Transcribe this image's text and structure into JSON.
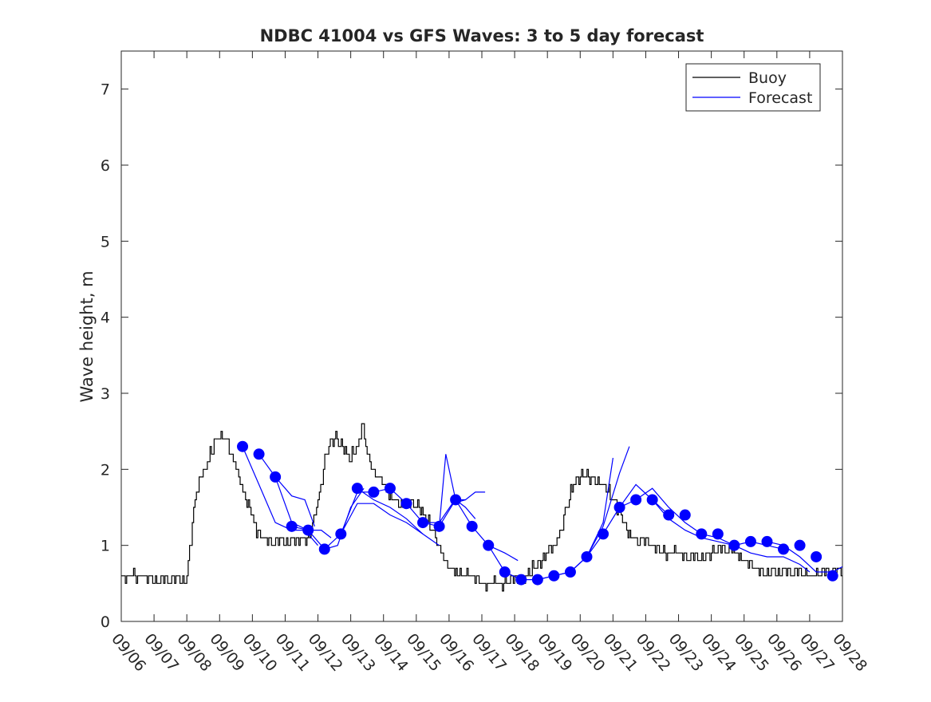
{
  "chart_data": {
    "type": "line",
    "title": "NDBC 41004 vs GFS Waves: 3 to 5 day forecast",
    "xlabel": "",
    "ylabel": "Wave height, m",
    "xlim": [
      0,
      22
    ],
    "ylim": [
      0,
      7.5
    ],
    "x_unit": "days since 09/06 00:00",
    "x_ticks": [
      0,
      1,
      2,
      3,
      4,
      5,
      6,
      7,
      8,
      9,
      10,
      11,
      12,
      13,
      14,
      15,
      16,
      17,
      18,
      19,
      20,
      21,
      22
    ],
    "x_tick_labels": [
      "09/06",
      "09/07",
      "09/08",
      "09/09",
      "09/10",
      "09/11",
      "09/12",
      "09/13",
      "09/14",
      "09/15",
      "09/16",
      "09/17",
      "09/18",
      "09/19",
      "09/20",
      "09/21",
      "09/22",
      "09/23",
      "09/24",
      "09/25",
      "09/26",
      "09/27",
      "09/28"
    ],
    "y_ticks": [
      0,
      1,
      2,
      3,
      4,
      5,
      6,
      7
    ],
    "y_tick_labels": [
      "0",
      "1",
      "2",
      "3",
      "4",
      "5",
      "6",
      "7"
    ],
    "legend": {
      "location": "top-right",
      "entries": [
        {
          "label": "Buoy",
          "color": "#000000"
        },
        {
          "label": "Forecast",
          "color": "#0000ff"
        }
      ]
    },
    "buoy_anchors": {
      "name": "Buoy",
      "color": "#000000",
      "x": [
        0.0,
        0.4,
        1.0,
        1.8,
        2.0,
        2.1,
        2.25,
        2.4,
        2.6,
        2.8,
        3.0,
        3.2,
        3.4,
        3.55,
        3.7,
        3.9,
        4.05,
        4.25,
        4.45,
        4.6,
        4.75,
        5.0,
        5.3,
        5.6,
        5.75,
        6.0,
        6.3,
        6.55,
        6.75,
        6.9,
        7.0,
        7.2,
        7.35,
        7.5,
        7.7,
        7.85,
        8.0,
        8.05,
        8.2,
        8.4,
        8.6,
        8.8,
        9.0,
        9.3,
        9.6,
        9.9,
        10.2,
        10.5,
        10.8,
        11.1,
        11.4,
        11.7,
        12.0,
        12.3,
        12.6,
        12.9,
        13.2,
        13.4,
        13.6,
        13.8,
        14.0,
        14.2,
        14.5,
        14.8,
        15.0,
        15.2,
        15.4,
        15.6,
        15.8,
        16.0,
        16.2,
        16.4,
        16.6,
        16.8,
        17.0,
        17.2,
        17.4,
        17.6,
        17.8,
        18.0,
        18.3,
        18.6,
        18.9,
        19.2,
        19.5,
        19.8,
        20.1,
        20.4,
        20.7,
        21.0,
        21.3,
        21.6,
        22.0
      ],
      "values": [
        0.55,
        0.6,
        0.55,
        0.55,
        0.55,
        1.0,
        1.6,
        1.9,
        2.05,
        2.3,
        2.45,
        2.4,
        2.15,
        1.95,
        1.7,
        1.5,
        1.25,
        1.1,
        1.05,
        1.05,
        1.1,
        1.05,
        1.05,
        1.1,
        1.15,
        1.6,
        2.3,
        2.4,
        2.3,
        2.2,
        2.15,
        2.3,
        2.6,
        2.2,
        1.95,
        1.9,
        1.8,
        1.75,
        1.65,
        1.55,
        1.5,
        1.55,
        1.55,
        1.35,
        1.1,
        0.75,
        0.65,
        0.6,
        0.55,
        0.45,
        0.5,
        0.5,
        0.55,
        0.6,
        0.7,
        0.85,
        1.0,
        1.2,
        1.55,
        1.8,
        1.9,
        1.95,
        1.85,
        1.75,
        1.6,
        1.45,
        1.2,
        1.1,
        1.05,
        1.05,
        1.0,
        0.95,
        0.9,
        0.9,
        0.9,
        0.85,
        0.85,
        0.85,
        0.85,
        0.9,
        0.95,
        0.95,
        0.85,
        0.75,
        0.65,
        0.65,
        0.65,
        0.65,
        0.65,
        0.62,
        0.62,
        0.65,
        0.65
      ]
    },
    "forecast_points": {
      "name": "Forecast",
      "color": "#0000ff",
      "x": [
        3.7,
        4.2,
        4.7,
        5.2,
        5.7,
        6.2,
        6.7,
        7.2,
        7.7,
        8.2,
        8.7,
        9.2,
        9.7,
        10.2,
        10.7,
        11.2,
        11.7,
        12.2,
        12.7,
        13.2,
        13.7,
        14.2,
        14.7,
        15.2,
        15.7,
        16.2,
        16.7,
        17.2,
        17.7,
        18.2,
        18.7,
        19.2,
        19.7,
        20.2,
        20.7,
        21.2,
        21.7
      ],
      "values": [
        2.3,
        2.2,
        1.9,
        1.25,
        1.2,
        0.95,
        1.15,
        1.75,
        1.7,
        1.75,
        1.55,
        1.3,
        1.25,
        1.6,
        1.25,
        1.0,
        0.65,
        0.55,
        0.55,
        0.6,
        0.65,
        0.85,
        1.15,
        1.5,
        1.6,
        1.6,
        1.4,
        1.4,
        1.15,
        1.15,
        1.0,
        1.05,
        1.05,
        0.95,
        1.0,
        0.85,
        0.6
      ]
    },
    "forecast_runs": [
      {
        "name": "Forecast",
        "color": "#0000ff",
        "x": [
          3.7,
          4.2,
          4.7,
          5.2,
          5.6,
          6.0
        ],
        "values": [
          2.3,
          1.8,
          1.3,
          1.2,
          1.2,
          1.0
        ]
      },
      {
        "name": "Forecast",
        "color": "#0000ff",
        "x": [
          4.2,
          4.7,
          5.2,
          5.6,
          5.9
        ],
        "values": [
          2.2,
          1.9,
          1.65,
          1.6,
          1.25
        ]
      },
      {
        "name": "Forecast",
        "color": "#0000ff",
        "x": [
          4.7,
          5.2,
          5.7,
          6.1,
          6.4
        ],
        "values": [
          1.9,
          1.3,
          1.2,
          1.2,
          1.1
        ]
      },
      {
        "name": "Forecast",
        "color": "#0000ff",
        "x": [
          5.2,
          5.7,
          6.2,
          6.6,
          7.0,
          7.4
        ],
        "values": [
          1.25,
          1.2,
          0.95,
          1.0,
          1.5,
          1.75
        ]
      },
      {
        "name": "Forecast",
        "color": "#0000ff",
        "x": [
          6.2,
          6.7,
          7.2,
          7.7,
          8.2
        ],
        "values": [
          0.95,
          1.15,
          1.7,
          1.7,
          1.75
        ]
      },
      {
        "name": "Forecast",
        "color": "#0000ff",
        "x": [
          6.7,
          7.2,
          7.7,
          8.2,
          8.7,
          9.2
        ],
        "values": [
          1.15,
          1.55,
          1.55,
          1.4,
          1.3,
          1.15
        ]
      },
      {
        "name": "Forecast",
        "color": "#0000ff",
        "x": [
          7.2,
          7.7,
          8.2,
          8.7,
          9.2,
          9.7
        ],
        "values": [
          1.75,
          1.6,
          1.5,
          1.35,
          1.15,
          1.0
        ]
      },
      {
        "name": "Forecast",
        "color": "#0000ff",
        "x": [
          8.2,
          8.7,
          9.2,
          9.7,
          10.1,
          10.5
        ],
        "values": [
          1.75,
          1.55,
          1.3,
          1.3,
          1.55,
          1.6
        ]
      },
      {
        "name": "Forecast",
        "color": "#0000ff",
        "x": [
          9.2,
          9.7,
          10.2,
          10.5,
          10.8,
          11.1
        ],
        "values": [
          1.3,
          1.25,
          1.6,
          1.6,
          1.7,
          1.7
        ]
      },
      {
        "name": "Forecast",
        "color": "#0000ff",
        "x": [
          9.7,
          9.9,
          10.2,
          10.5,
          10.8
        ],
        "values": [
          1.25,
          2.2,
          1.6,
          1.5,
          1.35
        ]
      },
      {
        "name": "Forecast",
        "color": "#0000ff",
        "x": [
          10.2,
          10.7,
          11.2,
          11.7,
          12.1
        ],
        "values": [
          1.6,
          1.25,
          1.0,
          0.9,
          0.8
        ]
      },
      {
        "name": "Forecast",
        "color": "#0000ff",
        "x": [
          11.2,
          11.7,
          12.2,
          12.7,
          13.2,
          13.7
        ],
        "values": [
          1.0,
          0.65,
          0.55,
          0.55,
          0.6,
          0.65
        ]
      },
      {
        "name": "Forecast",
        "color": "#0000ff",
        "x": [
          12.7,
          13.2,
          13.7,
          14.2,
          14.7,
          15.0
        ],
        "values": [
          0.55,
          0.6,
          0.65,
          0.85,
          1.3,
          2.15
        ]
      },
      {
        "name": "Forecast",
        "color": "#0000ff",
        "x": [
          13.7,
          14.2,
          14.7,
          15.2,
          15.5
        ],
        "values": [
          0.65,
          0.85,
          1.25,
          1.95,
          2.3
        ]
      },
      {
        "name": "Forecast",
        "color": "#0000ff",
        "x": [
          14.2,
          14.7,
          15.2,
          15.7,
          16.2,
          16.7
        ],
        "values": [
          0.85,
          1.15,
          1.5,
          1.8,
          1.6,
          1.4
        ]
      },
      {
        "name": "Forecast",
        "color": "#0000ff",
        "x": [
          15.2,
          15.7,
          16.2,
          16.7,
          17.2,
          17.7
        ],
        "values": [
          1.5,
          1.6,
          1.75,
          1.5,
          1.3,
          1.15
        ]
      },
      {
        "name": "Forecast",
        "color": "#0000ff",
        "x": [
          16.2,
          16.7,
          17.2,
          17.7,
          18.2,
          18.7
        ],
        "values": [
          1.6,
          1.35,
          1.2,
          1.1,
          1.05,
          1.0
        ]
      },
      {
        "name": "Forecast",
        "color": "#0000ff",
        "x": [
          17.7,
          18.2,
          18.7,
          19.2,
          19.7,
          20.2
        ],
        "values": [
          1.15,
          1.1,
          1.0,
          1.05,
          1.0,
          0.95
        ]
      },
      {
        "name": "Forecast",
        "color": "#0000ff",
        "x": [
          18.7,
          19.2,
          19.7,
          20.2,
          20.7,
          21.0
        ],
        "values": [
          1.0,
          0.9,
          0.85,
          0.85,
          0.75,
          0.65
        ]
      },
      {
        "name": "Forecast",
        "color": "#0000ff",
        "x": [
          19.7,
          20.2,
          20.7,
          21.2,
          21.7,
          22.0
        ],
        "values": [
          1.05,
          1.0,
          0.85,
          0.65,
          0.65,
          0.72
        ]
      }
    ]
  }
}
